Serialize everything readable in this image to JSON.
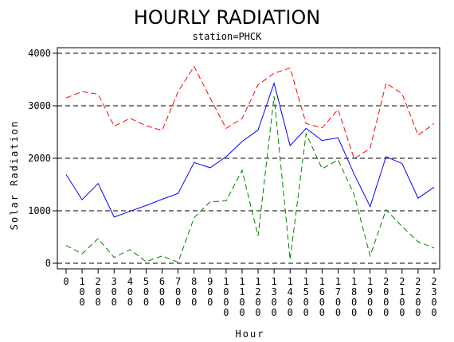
{
  "chart_data": {
    "type": "line",
    "title": "HOURLY RADIATION",
    "subtitle": "station=PHCK",
    "xlabel": "Hour",
    "ylabel": "Solar Radiation",
    "ylim": [
      0,
      4000
    ],
    "yticks": [
      0,
      1000,
      2000,
      3000,
      4000
    ],
    "grid": "horizontal dashed",
    "categories": [
      "0",
      "100",
      "200",
      "300",
      "400",
      "500",
      "600",
      "700",
      "800",
      "900",
      "1000",
      "1100",
      "1200",
      "1300",
      "1400",
      "1500",
      "1600",
      "1700",
      "1800",
      "1900",
      "2000",
      "2100",
      "2200",
      "2300"
    ],
    "series": [
      {
        "color": "#ff0000",
        "dash": "dashed",
        "values": [
          3150,
          3270,
          3220,
          2610,
          2760,
          2620,
          2530,
          3270,
          3750,
          3150,
          2570,
          2760,
          3400,
          3620,
          3720,
          2660,
          2580,
          2930,
          1990,
          2190,
          3430,
          3230,
          2440,
          2660
        ]
      },
      {
        "color": "#0000ff",
        "dash": "solid",
        "values": [
          1690,
          1210,
          1520,
          880,
          990,
          1100,
          1220,
          1330,
          1920,
          1820,
          2030,
          2320,
          2540,
          3430,
          2240,
          2570,
          2340,
          2390,
          1700,
          1080,
          2030,
          1900,
          1240,
          1450
        ]
      },
      {
        "color": "#008000",
        "dash": "dashed",
        "values": [
          340,
          180,
          470,
          110,
          260,
          30,
          140,
          20,
          870,
          1170,
          1190,
          1770,
          520,
          3180,
          70,
          2470,
          1800,
          1970,
          1310,
          140,
          1020,
          700,
          410,
          290
        ]
      }
    ]
  }
}
